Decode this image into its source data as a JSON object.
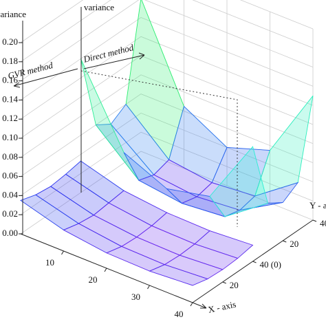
{
  "chart_data": {
    "type": "surface",
    "x_label": "X - axis",
    "y_label": "Y - axis",
    "xlim": [
      0,
      40
    ],
    "xticks": [
      10,
      20,
      30,
      40
    ],
    "zlim": [
      0,
      0.2
    ],
    "zticks": [
      {
        "value": 0,
        "label": "0.00"
      },
      {
        "value": 0.02,
        "label": "0.02"
      },
      {
        "value": 0.04,
        "label": "0.04"
      },
      {
        "value": 0.06,
        "label": "0.06"
      },
      {
        "value": 0.08,
        "label": "0.08"
      },
      {
        "value": 0.1,
        "label": "0.10"
      },
      {
        "value": 0.12,
        "label": "0.12"
      },
      {
        "value": 0.14,
        "label": "0.14"
      },
      {
        "value": 0.16,
        "label": "0.16"
      },
      {
        "value": 0.18,
        "label": "0.18"
      },
      {
        "value": 0.2,
        "label": "0.20"
      }
    ],
    "surfaces": [
      {
        "name": "GVR method",
        "z_label": "variance",
        "ylim": [
          0,
          40
        ],
        "yticks": [
          20,
          {
            "value": 40,
            "label": "40 (0)"
          }
        ],
        "x": [
          0,
          10,
          20,
          30,
          40
        ],
        "y": [
          0,
          10,
          20,
          30,
          40
        ],
        "z": [
          [
            0.035,
            0.022,
            0.016,
            0.015,
            0.018
          ],
          [
            0.03,
            0.018,
            0.012,
            0.011,
            0.014
          ],
          [
            0.028,
            0.016,
            0.011,
            0.01,
            0.013
          ],
          [
            0.03,
            0.018,
            0.012,
            0.011,
            0.014
          ],
          [
            0.033,
            0.02,
            0.015,
            0.014,
            0.017
          ]
        ]
      },
      {
        "name": "Direct method",
        "z_label": "variance",
        "ylim": [
          0,
          40
        ],
        "yticks": [
          20,
          40
        ],
        "x": [
          0,
          10,
          20,
          30,
          40
        ],
        "y": [
          0,
          10,
          20,
          30,
          40
        ],
        "z": [
          [
            0.14,
            0.06,
            0.04,
            0.05,
            0.12
          ],
          [
            0.06,
            0.02,
            0.014,
            0.018,
            0.05
          ],
          [
            0.05,
            0.015,
            0.01,
            0.014,
            0.04
          ],
          [
            0.06,
            0.02,
            0.014,
            0.018,
            0.05
          ],
          [
            0.16,
            0.065,
            0.04,
            0.055,
            0.13
          ]
        ]
      }
    ]
  }
}
